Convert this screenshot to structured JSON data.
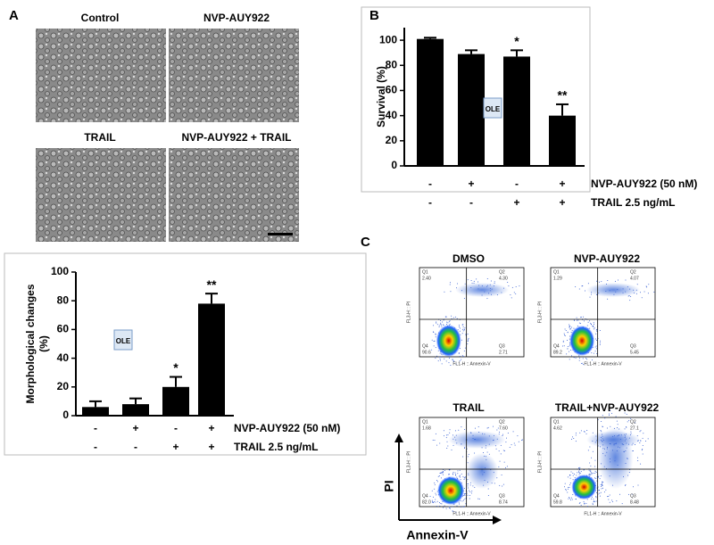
{
  "panel_labels": [
    "A",
    "B",
    "C"
  ],
  "micrographs": [
    "Control",
    "NVP-AUY922",
    "TRAIL",
    "NVP-AUY922 + TRAIL"
  ],
  "ole_icon": "OLE",
  "chart_data": [
    {
      "type": "bar",
      "ylabel": [
        "Morphological changes",
        "(%)"
      ],
      "values": [
        6,
        8,
        20,
        78
      ],
      "errors": [
        4,
        4,
        7,
        7
      ],
      "annotations": [
        null,
        null,
        "*",
        "**"
      ],
      "ylim": [
        0,
        100
      ],
      "yticks": [
        0,
        20,
        40,
        60,
        80,
        100
      ],
      "color": "#000000",
      "conditions": [
        {
          "name": "NVP-AUY922 (50 nM)",
          "values": [
            "-",
            "+",
            "-",
            "+"
          ]
        },
        {
          "name": "TRAIL 2.5 ng/mL",
          "values": [
            "-",
            "-",
            "+",
            "+"
          ]
        }
      ]
    },
    {
      "type": "bar",
      "ylabel": [
        "Survival (%)"
      ],
      "values": [
        101,
        89,
        87,
        40
      ],
      "errors": [
        1,
        3,
        5,
        9
      ],
      "annotations": [
        null,
        null,
        "*",
        "**"
      ],
      "ylim": [
        0,
        110
      ],
      "yticks": [
        0,
        20,
        40,
        60,
        80,
        100
      ],
      "color": "#000000",
      "conditions": [
        {
          "name": "NVP-AUY922 (50 nM)",
          "values": [
            "-",
            "+",
            "-",
            "+"
          ]
        },
        {
          "name": "TRAIL 2.5 ng/mL",
          "values": [
            "-",
            "-",
            "+",
            "+"
          ]
        }
      ]
    }
  ],
  "flow_cytometry": {
    "x_axis": "FL1-H :: Annexin-V",
    "y_axis": "FL3-H :: PI",
    "arrow_y": "PI",
    "arrow_x": "Annexin-V",
    "plots": [
      {
        "title": "DMSO",
        "quadrants": [
          {
            "name": "Q1",
            "value": "2.40"
          },
          {
            "name": "Q2",
            "value": "4.30"
          },
          {
            "name": "Q3",
            "value": "2.71"
          },
          {
            "name": "Q4",
            "value": "90.6"
          }
        ]
      },
      {
        "title": "NVP-AUY922",
        "quadrants": [
          {
            "name": "Q1",
            "value": "1.29"
          },
          {
            "name": "Q2",
            "value": "4.07"
          },
          {
            "name": "Q3",
            "value": "5.45"
          },
          {
            "name": "Q4",
            "value": "89.2"
          }
        ]
      },
      {
        "title": "TRAIL",
        "quadrants": [
          {
            "name": "Q1",
            "value": "1.68"
          },
          {
            "name": "Q2",
            "value": "7.60"
          },
          {
            "name": "Q3",
            "value": "8.74"
          },
          {
            "name": "Q4",
            "value": "82.0"
          }
        ]
      },
      {
        "title": "TRAIL+NVP-AUY922",
        "quadrants": [
          {
            "name": "Q1",
            "value": "4.62"
          },
          {
            "name": "Q2",
            "value": "27.1"
          },
          {
            "name": "Q3",
            "value": "8.48"
          },
          {
            "name": "Q4",
            "value": "59.8"
          }
        ]
      }
    ]
  }
}
